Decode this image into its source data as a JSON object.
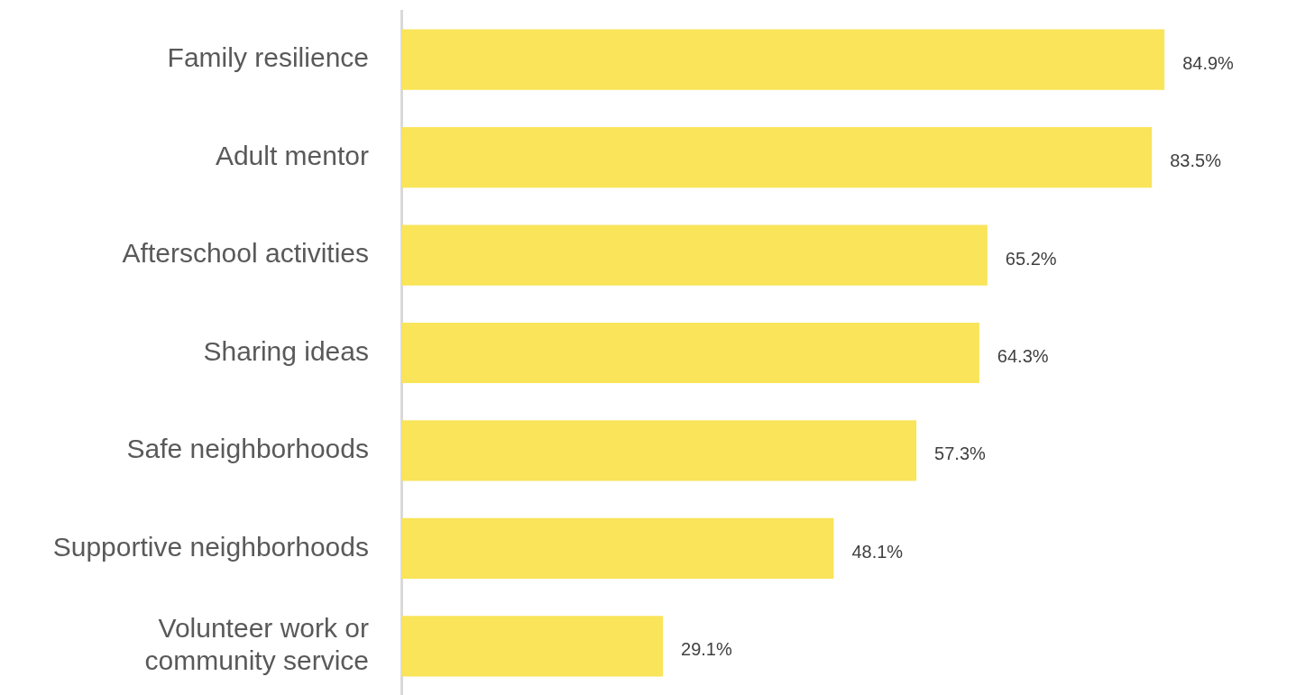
{
  "chart_data": {
    "type": "bar",
    "orientation": "horizontal",
    "categories": [
      "Family resilience",
      "Adult mentor",
      "Afterschool activities",
      "Sharing ideas",
      "Safe neighborhoods",
      "Supportive neighborhoods",
      "Volunteer work or community service"
    ],
    "values": [
      84.9,
      83.5,
      65.2,
      64.3,
      57.3,
      48.1,
      29.1
    ],
    "value_labels": [
      "84.9%",
      "83.5%",
      "65.2%",
      "64.3%",
      "57.3%",
      "48.1%",
      "29.1%"
    ],
    "color": "#f9e45a",
    "tick_labels": "y",
    "legend": false
  }
}
